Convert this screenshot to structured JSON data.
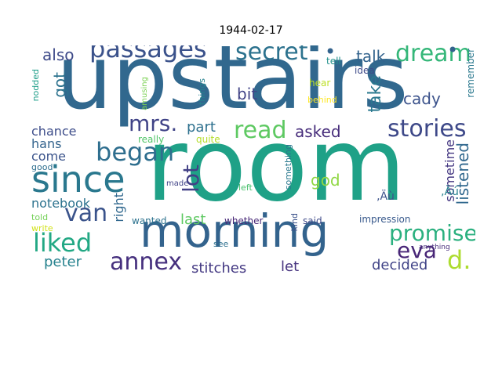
{
  "title": "1944-02-17",
  "words": [
    {
      "t": "upstairs",
      "c": "#31688e"
    },
    {
      "t": "room",
      "c": "#1fa187"
    },
    {
      "t": "morning",
      "c": "#33638d"
    },
    {
      "t": "since",
      "c": "#2a788e"
    },
    {
      "t": "passages",
      "c": "#3b528b"
    },
    {
      "t": "secret",
      "c": "#2c728e"
    },
    {
      "t": "dream",
      "c": "#35b779"
    },
    {
      "t": "began",
      "c": "#2e6e8e"
    },
    {
      "t": "stories",
      "c": "#3e4989"
    },
    {
      "t": "read",
      "c": "#5ec962"
    },
    {
      "t": "mrs.",
      "c": "#404387"
    },
    {
      "t": "promised",
      "c": "#2ab07f"
    },
    {
      "t": "liked",
      "c": "#22a884"
    },
    {
      "t": "van",
      "c": "#3a538b"
    },
    {
      "t": "annex",
      "c": "#46307e"
    },
    {
      "t": "eva",
      "c": "#482677"
    },
    {
      "t": "d.",
      "c": "#addc30"
    },
    {
      "t": "lot",
      "c": "#424086"
    },
    {
      "t": "listened",
      "c": "#31688e"
    },
    {
      "t": "also",
      "c": "#3e4a89"
    },
    {
      "t": "talk",
      "c": "#33638d"
    },
    {
      "t": "got",
      "c": "#2c728e"
    },
    {
      "t": "take",
      "c": "#2a788e"
    },
    {
      "t": "bit",
      "c": "#414487"
    },
    {
      "t": "cady",
      "c": "#3b528b"
    },
    {
      "t": "part",
      "c": "#2d708e"
    },
    {
      "t": "asked",
      "c": "#472d7b"
    },
    {
      "t": "chance",
      "c": "#3d4d8a"
    },
    {
      "t": "hans",
      "c": "#33638d"
    },
    {
      "t": "come",
      "c": "#3a538b"
    },
    {
      "t": "god",
      "c": "#90d743"
    },
    {
      "t": "sometime",
      "c": "#453882"
    },
    {
      "t": "notebook",
      "c": "#2c728e"
    },
    {
      "t": "right",
      "c": "#31688e"
    },
    {
      "t": "last",
      "c": "#5ec962"
    },
    {
      "t": "decided",
      "c": "#404387"
    },
    {
      "t": "peter",
      "c": "#26828e"
    },
    {
      "t": "stitches",
      "c": "#443983"
    },
    {
      "t": "let",
      "c": "#46337f"
    },
    {
      "t": "remember",
      "c": "#2a788e"
    },
    {
      "t": "tell",
      "c": "#21918c"
    },
    {
      "t": "idea",
      "c": "#3e4a89"
    },
    {
      "t": "hear",
      "c": "#bddf26"
    },
    {
      "t": "behind",
      "c": "#fde725"
    },
    {
      "t": "nodded",
      "c": "#1f9e89"
    },
    {
      "t": "amusing",
      "c": "#7ad151"
    },
    {
      "t": "things",
      "c": "#26828e"
    },
    {
      "t": "really",
      "c": "#52c569"
    },
    {
      "t": "quite",
      "c": "#b5de2b"
    },
    {
      "t": "something",
      "c": "#2a788e"
    },
    {
      "t": "good",
      "c": "#2e6e8e"
    },
    {
      "t": "made",
      "c": "#404387"
    },
    {
      "t": "left",
      "c": "#4ac16d"
    },
    {
      "t": "kind",
      "c": "#3b528b"
    },
    {
      "t": "told",
      "c": "#73d056"
    },
    {
      "t": "write",
      "c": "#d2e21b"
    },
    {
      "t": "wanted",
      "c": "#2c728e"
    },
    {
      "t": "whether",
      "c": "#482878"
    },
    {
      "t": "said",
      "c": "#3e4a89"
    },
    {
      "t": "impression",
      "c": "#38598c"
    },
    {
      "t": "see",
      "c": "#2d708e"
    },
    {
      "t": "anything",
      "c": "#472d7b"
    },
    {
      "t": "‚Äú",
      "c": "#26828e"
    },
    {
      "t": "‚Äù",
      "c": "#3b528b"
    }
  ]
}
